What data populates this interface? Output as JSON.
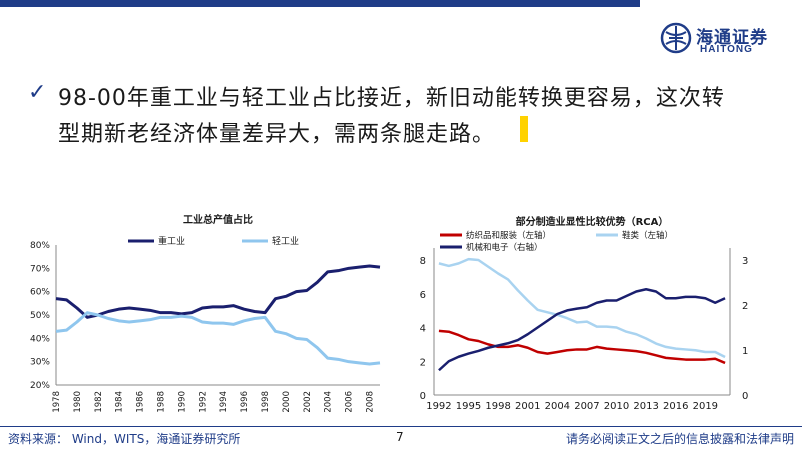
{
  "brand": {
    "name_cn": "海通证券",
    "name_en": "HAITONG",
    "color": "#1f3c88"
  },
  "headline": {
    "icon": "check-icon",
    "line1": "98-00年重工业与轻工业占比接近，新旧动能转换更容易，这次转",
    "line2": "型期新老经济体量差异大，需两条腿走路。"
  },
  "footer": {
    "source": "资料来源：  Wind，WITS，海通证券研究所",
    "page": "7",
    "disclaimer": "请务必阅读正文之后的信息披露和法律声明"
  },
  "chart_data": [
    {
      "type": "line",
      "title": "工业总产值占比",
      "y_ticks": [
        "80%",
        "70%",
        "60%",
        "50%",
        "40%",
        "30%",
        "20%"
      ],
      "ylim": [
        20,
        80
      ],
      "x_ticks": [
        "1978",
        "1980",
        "1982",
        "1984",
        "1986",
        "1988",
        "1990",
        "1992",
        "1994",
        "1996",
        "1998",
        "2000",
        "2002",
        "2004",
        "2006",
        "2008"
      ],
      "legend_position": "top",
      "series": [
        {
          "name": "重工业",
          "color": "#1a1f6e",
          "x": [
            1978,
            1979,
            1980,
            1981,
            1982,
            1983,
            1984,
            1985,
            1986,
            1987,
            1988,
            1989,
            1990,
            1991,
            1992,
            1993,
            1994,
            1995,
            1996,
            1997,
            1998,
            1999,
            2000,
            2001,
            2002,
            2003,
            2004,
            2005,
            2006,
            2007,
            2008,
            2009
          ],
          "values": [
            57,
            56.5,
            53,
            49,
            50,
            51.5,
            52.5,
            53,
            52.5,
            52,
            51,
            51,
            50.5,
            51,
            53,
            53.5,
            53.5,
            54,
            52.5,
            51.5,
            51,
            57,
            58,
            60,
            60.5,
            64,
            68.5,
            69,
            70,
            70.5,
            71,
            70.5
          ]
        },
        {
          "name": "轻工业",
          "color": "#8fc6ee",
          "x": [
            1978,
            1979,
            1980,
            1981,
            1982,
            1983,
            1984,
            1985,
            1986,
            1987,
            1988,
            1989,
            1990,
            1991,
            1992,
            1993,
            1994,
            1995,
            1996,
            1997,
            1998,
            1999,
            2000,
            2001,
            2002,
            2003,
            2004,
            2005,
            2006,
            2007,
            2008,
            2009
          ],
          "values": [
            43,
            43.5,
            47,
            51,
            50,
            48.5,
            47.5,
            47,
            47.5,
            48,
            49,
            49,
            49.5,
            49,
            47,
            46.5,
            46.5,
            46,
            47.5,
            48.5,
            49,
            43,
            42,
            40,
            39.5,
            36,
            31.5,
            31,
            30,
            29.5,
            29,
            29.5
          ]
        }
      ]
    },
    {
      "type": "line",
      "title": "部分制造业显性比较优势（RCA）",
      "left_y_ticks": [
        "8",
        "6",
        "4",
        "2",
        "0"
      ],
      "left_ylim": [
        0,
        8
      ],
      "right_y_ticks": [
        "3",
        "2",
        "1",
        "0"
      ],
      "right_ylim": [
        0,
        3
      ],
      "x_ticks": [
        "1992",
        "1995",
        "1998",
        "2001",
        "2004",
        "2007",
        "2010",
        "2013",
        "2016",
        "2019"
      ],
      "legend_position": "top",
      "series": [
        {
          "name": "纺织品和服装（左轴）",
          "axis": "left",
          "color": "#c00000",
          "x": [
            1992,
            1993,
            1994,
            1995,
            1996,
            1997,
            1998,
            1999,
            2000,
            2001,
            2002,
            2003,
            2004,
            2005,
            2006,
            2007,
            2008,
            2009,
            2010,
            2011,
            2012,
            2013,
            2014,
            2015,
            2016,
            2017,
            2018,
            2019,
            2020,
            2021
          ],
          "values": [
            3.8,
            3.75,
            3.55,
            3.3,
            3.2,
            3.0,
            2.85,
            2.85,
            2.95,
            2.8,
            2.55,
            2.45,
            2.55,
            2.65,
            2.7,
            2.7,
            2.85,
            2.75,
            2.7,
            2.65,
            2.6,
            2.5,
            2.35,
            2.2,
            2.15,
            2.1,
            2.1,
            2.1,
            2.15,
            1.9
          ]
        },
        {
          "name": "鞋类（左轴）",
          "axis": "left",
          "color": "#a9d3f0",
          "x": [
            1992,
            1993,
            1994,
            1995,
            1996,
            1997,
            1998,
            1999,
            2000,
            2001,
            2002,
            2003,
            2004,
            2005,
            2006,
            2007,
            2008,
            2009,
            2010,
            2011,
            2012,
            2013,
            2014,
            2015,
            2016,
            2017,
            2018,
            2019,
            2020,
            2021
          ],
          "values": [
            7.8,
            7.65,
            7.8,
            8.05,
            8.0,
            7.6,
            7.2,
            6.85,
            6.2,
            5.6,
            5.05,
            4.9,
            4.75,
            4.55,
            4.3,
            4.35,
            4.05,
            4.05,
            4.0,
            3.75,
            3.6,
            3.35,
            3.05,
            2.85,
            2.75,
            2.7,
            2.65,
            2.55,
            2.55,
            2.25
          ]
        },
        {
          "name": "机械和电子（右轴）",
          "axis": "right",
          "color": "#1a1f6e",
          "x": [
            1992,
            1993,
            1994,
            1995,
            1996,
            1997,
            1998,
            1999,
            2000,
            2001,
            2002,
            2003,
            2004,
            2005,
            2006,
            2007,
            2008,
            2009,
            2010,
            2011,
            2012,
            2013,
            2014,
            2015,
            2016,
            2017,
            2018,
            2019,
            2020,
            2021
          ],
          "values": [
            0.55,
            0.75,
            0.85,
            0.92,
            0.98,
            1.05,
            1.1,
            1.15,
            1.22,
            1.35,
            1.5,
            1.65,
            1.8,
            1.88,
            1.92,
            1.95,
            2.05,
            2.1,
            2.1,
            2.2,
            2.3,
            2.35,
            2.3,
            2.15,
            2.15,
            2.18,
            2.18,
            2.15,
            2.05,
            2.15
          ]
        }
      ]
    }
  ]
}
